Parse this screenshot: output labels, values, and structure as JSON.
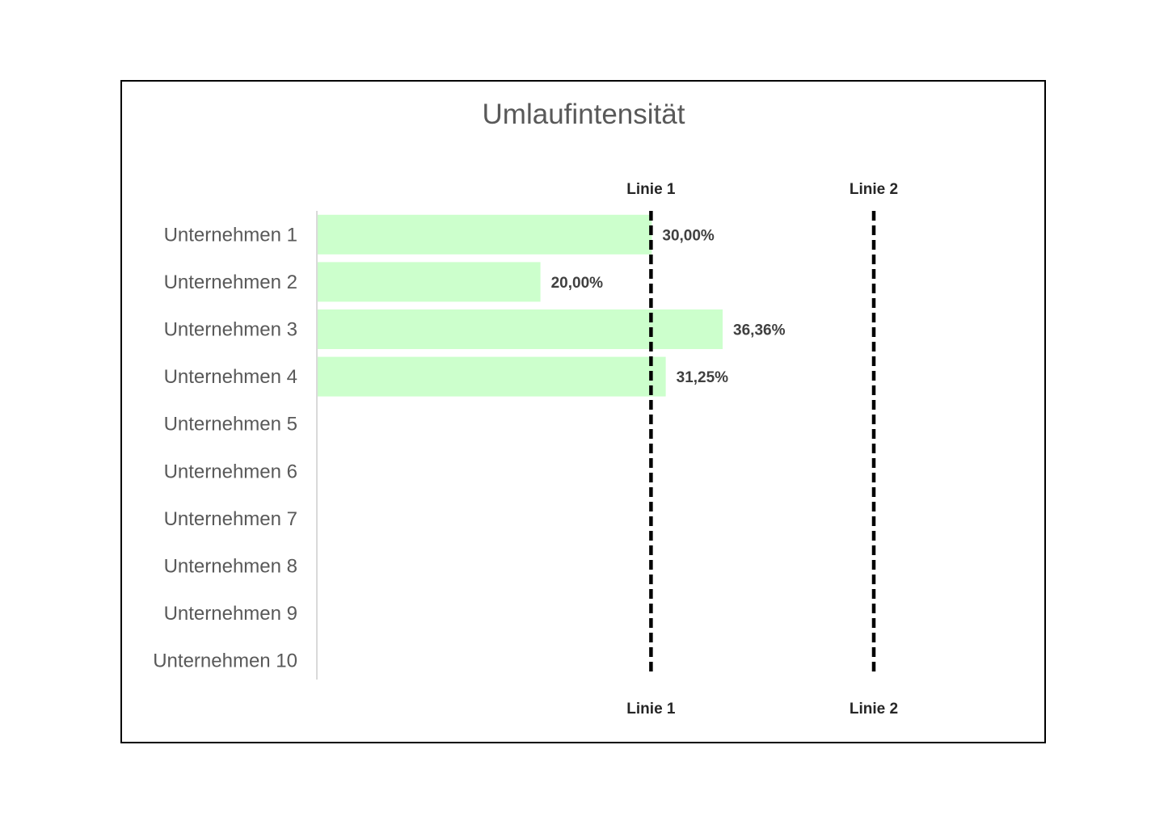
{
  "chart_data": {
    "type": "bar",
    "orientation": "horizontal",
    "title": "Umlaufintensität",
    "categories": [
      "Unternehmen 1",
      "Unternehmen 2",
      "Unternehmen 3",
      "Unternehmen 4",
      "Unternehmen 5",
      "Unternehmen 6",
      "Unternehmen 7",
      "Unternehmen 8",
      "Unternehmen 9",
      "Unternehmen 10"
    ],
    "values": [
      30.0,
      20.0,
      36.36,
      31.25,
      null,
      null,
      null,
      null,
      null,
      null
    ],
    "data_labels": [
      "30,00%",
      "20,00%",
      "36,36%",
      "31,25%",
      "",
      "",
      "",
      "",
      "",
      ""
    ],
    "value_unit": "%",
    "xlim": [
      0,
      60
    ],
    "reference_lines": [
      {
        "label": "Linie 1",
        "value": 30
      },
      {
        "label": "Linie 2",
        "value": 50
      }
    ],
    "colors": {
      "bar": "#ccffcc",
      "reference_line": "#000000",
      "axis": "#d9d9d9",
      "title": "#595959",
      "category_text": "#595959",
      "data_label_text": "#404040"
    },
    "grid": false,
    "legend": "none"
  }
}
